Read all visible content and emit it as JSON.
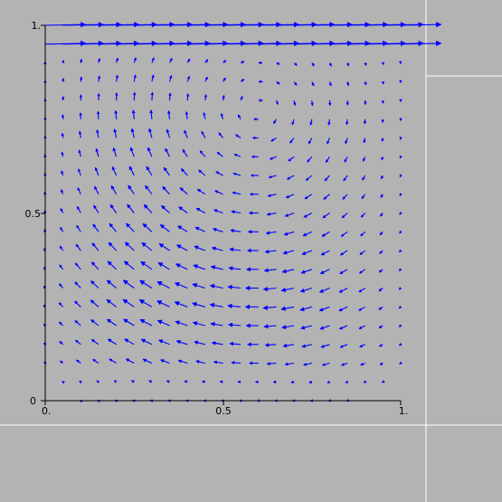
{
  "chart_data": {
    "type": "quiver",
    "title": "",
    "xlabel": "",
    "ylabel": "",
    "xlim": [
      0,
      1
    ],
    "ylim": [
      0,
      1
    ],
    "x_ticks": [
      "0.",
      "0.5",
      "1."
    ],
    "y_ticks": [
      "0",
      "0.5",
      "1."
    ],
    "field": {
      "description": "lid-driven cavity circulation; vortex center near (0.6, 0.78); lid moving in +x at y = 1",
      "vortex_center": [
        0.6,
        0.78
      ],
      "grid": {
        "nx": 21,
        "ny": 21
      }
    },
    "colors": {
      "vectors": "#0000ff",
      "background": "#b3b3b3",
      "axes": "#000000",
      "dividers": "#ffffff"
    }
  }
}
